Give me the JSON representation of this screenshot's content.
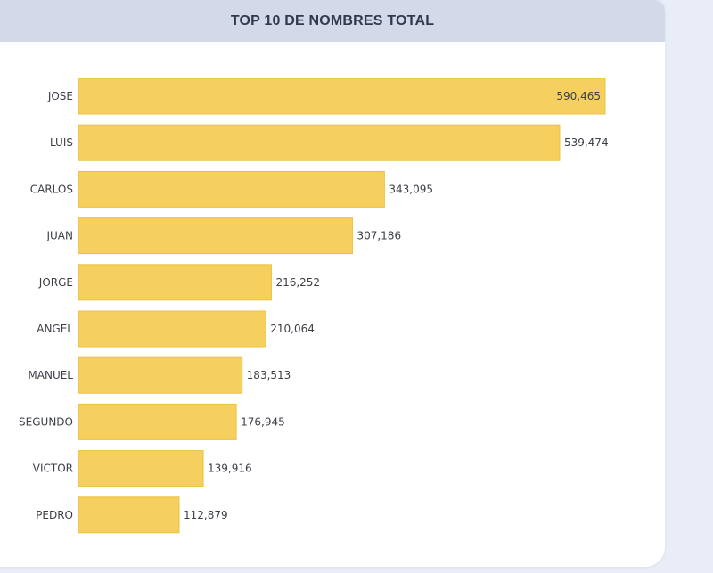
{
  "chart_data": {
    "type": "bar",
    "orientation": "horizontal",
    "title": "TOP 10 DE NOMBRES TOTAL",
    "categories": [
      "JOSE",
      "LUIS",
      "CARLOS",
      "JUAN",
      "JORGE",
      "ANGEL",
      "MANUEL",
      "SEGUNDO",
      "VICTOR",
      "PEDRO"
    ],
    "values": [
      590465,
      539474,
      343095,
      307186,
      216252,
      210064,
      183513,
      176945,
      139916,
      112879
    ],
    "value_labels": [
      "590,465",
      "539,474",
      "343,095",
      "307,186",
      "216,252",
      "210,064",
      "183,513",
      "176,945",
      "139,916",
      "112,879"
    ],
    "xlim": [
      0,
      590465
    ],
    "grid": false,
    "bar_color": "#f5d05f"
  }
}
